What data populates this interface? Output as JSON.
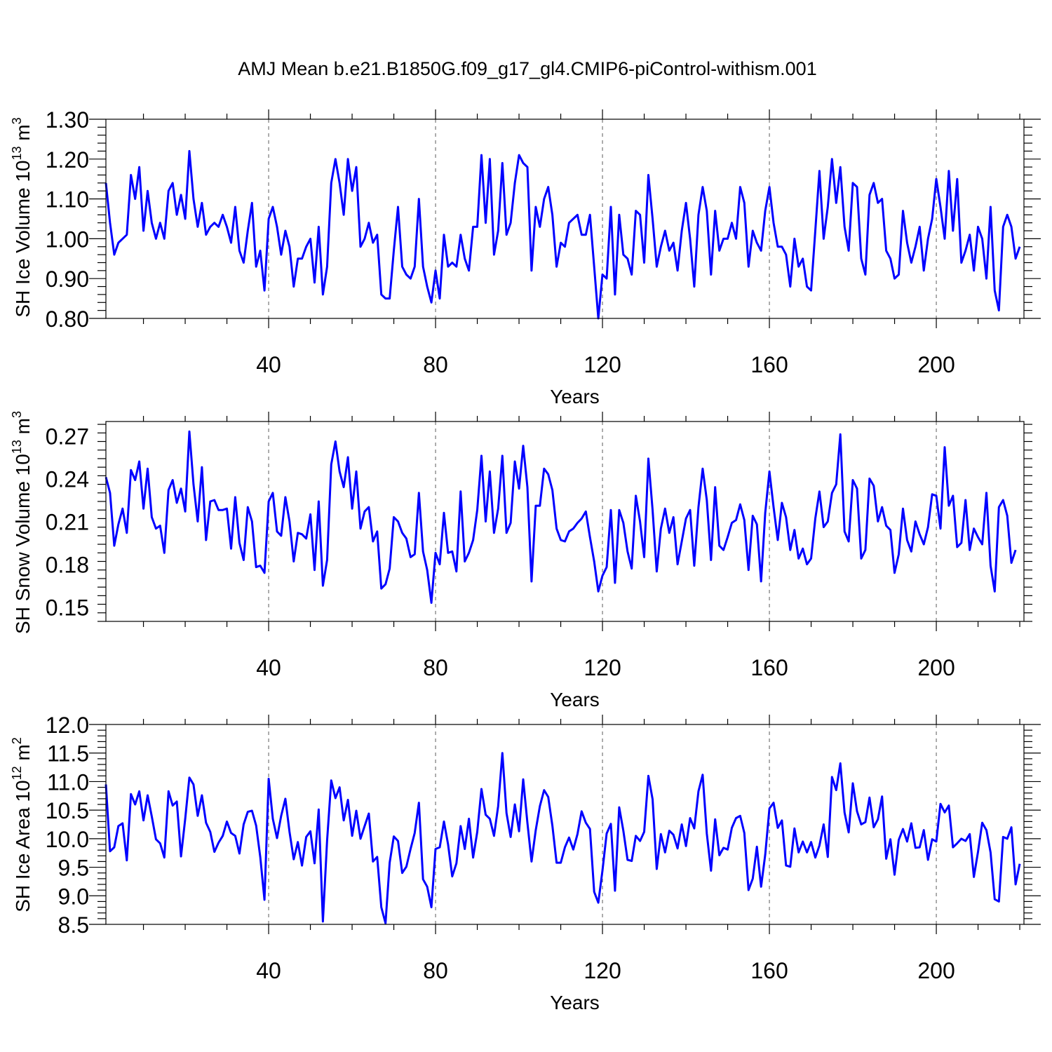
{
  "title": "AMJ Mean b.e21.B1850G.f09_g17_gl4.CMIP6-piControl-withism.001",
  "colors": {
    "series": "#0000ff",
    "grid": "#777777",
    "axis": "#000000"
  },
  "chart_data": [
    {
      "type": "line",
      "xlabel": "Years",
      "ylabel": "SH Ice Volume 10",
      "ylabel_sup": "13",
      "ylabel_unit": " m",
      "ylabel_unit_sup": "3",
      "xlim": [
        1,
        221
      ],
      "ylim": [
        0.8,
        1.3
      ],
      "yticks": [
        0.8,
        0.9,
        1.0,
        1.1,
        1.2,
        1.3
      ],
      "ytick_labels": [
        "0.80",
        "0.90",
        "1.00",
        "1.10",
        "1.20",
        "1.30"
      ],
      "xticks": [
        40,
        80,
        120,
        160,
        200
      ],
      "xtick_labels": [
        "40",
        "80",
        "120",
        "160",
        "200"
      ],
      "grid": "vertical dashed at major x ticks",
      "values": [
        1.14,
        1.04,
        0.96,
        0.99,
        1.0,
        1.01,
        1.16,
        1.1,
        1.18,
        1.02,
        1.12,
        1.04,
        1.0,
        1.04,
        1.0,
        1.12,
        1.14,
        1.06,
        1.11,
        1.05,
        1.22,
        1.1,
        1.03,
        1.09,
        1.01,
        1.03,
        1.04,
        1.03,
        1.06,
        1.03,
        0.99,
        1.08,
        0.97,
        0.94,
        1.02,
        1.09,
        0.93,
        0.97,
        0.87,
        1.05,
        1.08,
        1.03,
        0.96,
        1.02,
        0.98,
        0.88,
        0.95,
        0.95,
        0.98,
        1.0,
        0.89,
        1.03,
        0.86,
        0.93,
        1.14,
        1.2,
        1.14,
        1.06,
        1.2,
        1.12,
        1.18,
        0.98,
        1.0,
        1.04,
        0.99,
        1.01,
        0.86,
        0.85,
        0.85,
        0.97,
        1.08,
        0.93,
        0.91,
        0.9,
        0.93,
        1.1,
        0.93,
        0.88,
        0.84,
        0.92,
        0.85,
        1.01,
        0.93,
        0.94,
        0.93,
        1.01,
        0.95,
        0.92,
        1.03,
        1.03,
        1.21,
        1.04,
        1.2,
        0.96,
        1.02,
        1.19,
        1.01,
        1.04,
        1.14,
        1.21,
        1.19,
        1.18,
        0.92,
        1.08,
        1.03,
        1.1,
        1.13,
        1.06,
        0.93,
        0.99,
        0.98,
        1.04,
        1.05,
        1.06,
        1.01,
        1.01,
        1.06,
        0.93,
        0.8,
        0.91,
        0.9,
        1.08,
        0.86,
        1.06,
        0.96,
        0.95,
        0.91,
        1.07,
        1.06,
        0.94,
        1.16,
        1.05,
        0.93,
        0.98,
        1.02,
        0.97,
        0.99,
        0.92,
        1.02,
        1.09,
        1.0,
        0.88,
        1.06,
        1.13,
        1.07,
        0.91,
        1.07,
        0.97,
        1.0,
        1.0,
        1.04,
        1.0,
        1.13,
        1.09,
        0.93,
        1.02,
        0.99,
        0.97,
        1.07,
        1.13,
        1.04,
        0.98,
        0.98,
        0.96,
        0.88,
        1.0,
        0.93,
        0.95,
        0.88,
        0.87,
        1.02,
        1.17,
        1.0,
        1.08,
        1.2,
        1.09,
        1.18,
        1.03,
        0.97,
        1.14,
        1.13,
        0.95,
        0.91,
        1.11,
        1.14,
        1.09,
        1.1,
        0.97,
        0.95,
        0.9,
        0.91,
        1.07,
        0.99,
        0.94,
        0.98,
        1.03,
        0.92,
        1.0,
        1.05,
        1.15,
        1.08,
        1.0,
        1.17,
        1.02,
        1.15,
        0.94,
        0.97,
        1.01,
        0.92,
        1.03,
        1.0,
        0.9,
        1.08,
        0.87,
        0.82,
        1.03,
        1.06,
        1.03,
        0.95,
        0.98
      ]
    },
    {
      "type": "line",
      "xlabel": "Years",
      "ylabel": "SH Snow Volume 10",
      "ylabel_sup": "13",
      "ylabel_unit": " m",
      "ylabel_unit_sup": "3",
      "xlim": [
        1,
        221
      ],
      "ylim": [
        0.14,
        0.28
      ],
      "yticks": [
        0.15,
        0.18,
        0.21,
        0.24,
        0.27
      ],
      "ytick_labels": [
        "0.15",
        "0.18",
        "0.21",
        "0.24",
        "0.27"
      ],
      "xticks": [
        40,
        80,
        120,
        160,
        200
      ],
      "xtick_labels": [
        "40",
        "80",
        "120",
        "160",
        "200"
      ],
      "grid": "vertical dashed at major x ticks",
      "values": [
        0.241,
        0.23,
        0.193,
        0.208,
        0.219,
        0.202,
        0.246,
        0.239,
        0.252,
        0.219,
        0.247,
        0.213,
        0.205,
        0.207,
        0.188,
        0.232,
        0.239,
        0.223,
        0.233,
        0.217,
        0.273,
        0.236,
        0.21,
        0.248,
        0.197,
        0.224,
        0.225,
        0.218,
        0.218,
        0.219,
        0.191,
        0.227,
        0.195,
        0.183,
        0.22,
        0.21,
        0.178,
        0.179,
        0.174,
        0.224,
        0.23,
        0.203,
        0.2,
        0.227,
        0.21,
        0.182,
        0.202,
        0.201,
        0.198,
        0.215,
        0.176,
        0.224,
        0.165,
        0.183,
        0.25,
        0.266,
        0.245,
        0.234,
        0.255,
        0.219,
        0.245,
        0.205,
        0.217,
        0.22,
        0.196,
        0.203,
        0.163,
        0.166,
        0.177,
        0.213,
        0.21,
        0.202,
        0.198,
        0.185,
        0.187,
        0.23,
        0.189,
        0.176,
        0.153,
        0.188,
        0.18,
        0.216,
        0.188,
        0.189,
        0.175,
        0.231,
        0.182,
        0.188,
        0.197,
        0.218,
        0.256,
        0.21,
        0.245,
        0.202,
        0.219,
        0.256,
        0.202,
        0.209,
        0.252,
        0.233,
        0.263,
        0.234,
        0.168,
        0.221,
        0.221,
        0.247,
        0.243,
        0.232,
        0.205,
        0.197,
        0.196,
        0.203,
        0.205,
        0.209,
        0.212,
        0.217,
        0.199,
        0.182,
        0.161,
        0.172,
        0.178,
        0.218,
        0.167,
        0.218,
        0.209,
        0.189,
        0.177,
        0.228,
        0.21,
        0.185,
        0.254,
        0.218,
        0.175,
        0.205,
        0.219,
        0.202,
        0.213,
        0.18,
        0.196,
        0.212,
        0.218,
        0.179,
        0.22,
        0.247,
        0.225,
        0.183,
        0.234,
        0.193,
        0.19,
        0.199,
        0.209,
        0.211,
        0.222,
        0.211,
        0.176,
        0.214,
        0.208,
        0.168,
        0.216,
        0.245,
        0.22,
        0.197,
        0.223,
        0.213,
        0.19,
        0.204,
        0.184,
        0.191,
        0.18,
        0.184,
        0.212,
        0.231,
        0.206,
        0.21,
        0.23,
        0.236,
        0.271,
        0.203,
        0.196,
        0.239,
        0.233,
        0.184,
        0.19,
        0.24,
        0.235,
        0.21,
        0.22,
        0.207,
        0.204,
        0.174,
        0.187,
        0.219,
        0.197,
        0.189,
        0.21,
        0.201,
        0.194,
        0.206,
        0.229,
        0.228,
        0.205,
        0.262,
        0.221,
        0.228,
        0.192,
        0.195,
        0.225,
        0.19,
        0.205,
        0.199,
        0.194,
        0.23,
        0.179,
        0.161,
        0.22,
        0.225,
        0.214,
        0.181,
        0.19
      ]
    },
    {
      "type": "line",
      "xlabel": "Years",
      "ylabel": "SH Ice Area 10",
      "ylabel_sup": "12",
      "ylabel_unit": " m",
      "ylabel_unit_sup": "2",
      "xlim": [
        1,
        221
      ],
      "ylim": [
        8.5,
        12.0
      ],
      "yticks": [
        8.5,
        9.0,
        9.5,
        10.0,
        10.5,
        11.0,
        11.5,
        12.0
      ],
      "ytick_labels": [
        "8.5",
        "9.0",
        "9.5",
        "10.0",
        "10.5",
        "11.0",
        "11.5",
        "12.0"
      ],
      "xticks": [
        40,
        80,
        120,
        160,
        200
      ],
      "xtick_labels": [
        "40",
        "80",
        "120",
        "160",
        "200"
      ],
      "grid": "vertical dashed at major x ticks",
      "values": [
        10.95,
        9.78,
        9.85,
        10.22,
        10.27,
        9.62,
        10.78,
        10.6,
        10.83,
        10.32,
        10.76,
        10.39,
        9.99,
        9.92,
        9.67,
        10.83,
        10.58,
        10.65,
        9.69,
        10.35,
        11.07,
        10.95,
        10.4,
        10.76,
        10.28,
        10.12,
        9.77,
        9.93,
        10.05,
        10.3,
        10.1,
        10.05,
        9.74,
        10.25,
        10.47,
        10.49,
        10.23,
        9.68,
        8.93,
        11.05,
        10.35,
        10.01,
        10.4,
        10.7,
        10.12,
        9.64,
        9.94,
        9.53,
        10.03,
        10.13,
        9.57,
        10.51,
        8.55,
        9.97,
        11.02,
        10.71,
        10.9,
        10.32,
        10.68,
        10.05,
        10.49,
        10.0,
        10.22,
        10.44,
        9.6,
        9.68,
        8.8,
        8.52,
        9.58,
        10.04,
        9.96,
        9.4,
        9.51,
        9.82,
        10.1,
        10.63,
        9.29,
        9.16,
        8.8,
        9.82,
        9.85,
        10.3,
        9.9,
        9.34,
        9.57,
        10.22,
        9.82,
        10.35,
        9.67,
        10.12,
        10.87,
        10.42,
        10.35,
        10.05,
        10.57,
        11.5,
        10.45,
        10.03,
        10.6,
        10.13,
        11.04,
        10.28,
        9.6,
        10.15,
        10.57,
        10.85,
        10.73,
        10.23,
        9.58,
        9.58,
        9.85,
        10.02,
        9.81,
        10.08,
        10.48,
        10.28,
        10.17,
        9.07,
        8.88,
        9.44,
        10.09,
        10.26,
        9.09,
        10.55,
        10.14,
        9.63,
        9.61,
        10.05,
        9.96,
        10.12,
        11.1,
        10.69,
        9.47,
        10.08,
        9.76,
        10.14,
        10.07,
        9.83,
        10.25,
        9.87,
        10.36,
        10.18,
        10.83,
        11.12,
        10.09,
        9.44,
        10.34,
        9.71,
        9.84,
        9.81,
        10.19,
        10.36,
        10.4,
        10.1,
        9.1,
        9.3,
        9.86,
        9.16,
        9.72,
        10.53,
        10.63,
        10.19,
        10.32,
        9.53,
        9.51,
        10.18,
        9.76,
        9.95,
        9.76,
        9.94,
        9.67,
        9.88,
        10.25,
        9.68,
        11.08,
        10.85,
        11.32,
        10.46,
        10.11,
        10.97,
        10.48,
        10.25,
        10.29,
        10.72,
        10.2,
        10.34,
        10.74,
        9.65,
        9.99,
        9.37,
        9.98,
        10.17,
        9.95,
        10.27,
        9.84,
        9.85,
        10.15,
        9.63,
        9.99,
        9.95,
        10.61,
        10.46,
        10.58,
        9.85,
        9.92,
        10.0,
        9.96,
        10.08,
        9.33,
        9.77,
        10.28,
        10.15,
        9.76,
        8.94,
        8.9,
        10.03,
        10.0,
        10.2,
        9.2,
        9.56
      ]
    }
  ]
}
